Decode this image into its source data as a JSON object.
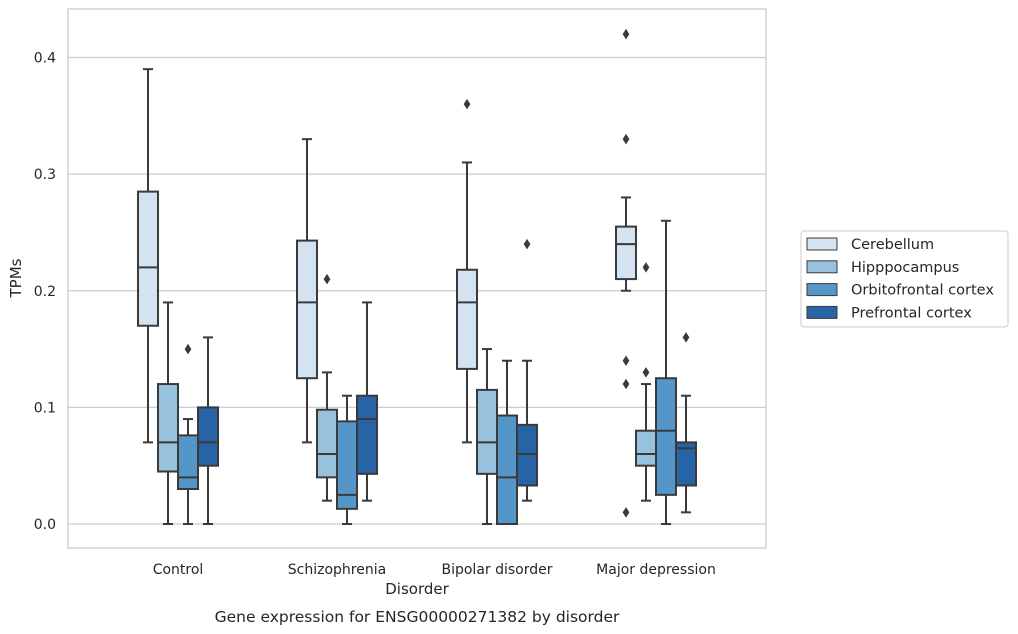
{
  "chart_data": {
    "type": "box",
    "title": "",
    "caption": "Gene expression for ENSG00000271382 by disorder",
    "xlabel": "Disorder",
    "ylabel": "TPMs",
    "ylim": [
      -0.02,
      0.441
    ],
    "yticks": [
      0.0,
      0.1,
      0.2,
      0.3,
      0.4
    ],
    "ytick_labels": [
      "0.0",
      "0.1",
      "0.2",
      "0.3",
      "0.4"
    ],
    "grid": "horizontal",
    "legend_position": "right",
    "categories": [
      "Control",
      "Schizophrenia",
      "Bipolar disorder",
      "Major depression"
    ],
    "series": [
      {
        "name": "Cerebellum",
        "color": "#d4e3f2",
        "boxes": [
          {
            "q1": 0.17,
            "median": 0.22,
            "q3": 0.285,
            "whisker_low": 0.07,
            "whisker_high": 0.39,
            "outliers": []
          },
          {
            "q1": 0.125,
            "median": 0.19,
            "q3": 0.243,
            "whisker_low": 0.07,
            "whisker_high": 0.33,
            "outliers": []
          },
          {
            "q1": 0.133,
            "median": 0.19,
            "q3": 0.218,
            "whisker_low": 0.07,
            "whisker_high": 0.31,
            "outliers": [
              0.36
            ]
          },
          {
            "q1": 0.21,
            "median": 0.24,
            "q3": 0.255,
            "whisker_low": 0.2,
            "whisker_high": 0.28,
            "outliers": [
              0.42,
              0.33,
              0.14,
              0.12,
              0.01
            ]
          }
        ]
      },
      {
        "name": "Hipppocampus",
        "color": "#97c1dc",
        "boxes": [
          {
            "q1": 0.045,
            "median": 0.07,
            "q3": 0.12,
            "whisker_low": 0.0,
            "whisker_high": 0.19,
            "outliers": []
          },
          {
            "q1": 0.04,
            "median": 0.06,
            "q3": 0.098,
            "whisker_low": 0.02,
            "whisker_high": 0.13,
            "outliers": [
              0.21
            ]
          },
          {
            "q1": 0.043,
            "median": 0.07,
            "q3": 0.115,
            "whisker_low": 0.0,
            "whisker_high": 0.15,
            "outliers": []
          },
          {
            "q1": 0.05,
            "median": 0.06,
            "q3": 0.08,
            "whisker_low": 0.02,
            "whisker_high": 0.12,
            "outliers": [
              0.22,
              0.13
            ]
          }
        ]
      },
      {
        "name": "Orbitofrontal cortex",
        "color": "#5496c8",
        "boxes": [
          {
            "q1": 0.03,
            "median": 0.04,
            "q3": 0.076,
            "whisker_low": 0.0,
            "whisker_high": 0.09,
            "outliers": [
              0.15
            ]
          },
          {
            "q1": 0.013,
            "median": 0.025,
            "q3": 0.088,
            "whisker_low": 0.0,
            "whisker_high": 0.11,
            "outliers": []
          },
          {
            "q1": 0.0,
            "median": 0.04,
            "q3": 0.093,
            "whisker_low": 0.0,
            "whisker_high": 0.14,
            "outliers": []
          },
          {
            "q1": 0.025,
            "median": 0.08,
            "q3": 0.125,
            "whisker_low": 0.0,
            "whisker_high": 0.26,
            "outliers": []
          }
        ]
      },
      {
        "name": "Prefrontal cortex",
        "color": "#2664a5",
        "boxes": [
          {
            "q1": 0.05,
            "median": 0.07,
            "q3": 0.1,
            "whisker_low": 0.0,
            "whisker_high": 0.16,
            "outliers": []
          },
          {
            "q1": 0.043,
            "median": 0.09,
            "q3": 0.11,
            "whisker_low": 0.02,
            "whisker_high": 0.19,
            "outliers": []
          },
          {
            "q1": 0.033,
            "median": 0.06,
            "q3": 0.085,
            "whisker_low": 0.02,
            "whisker_high": 0.14,
            "outliers": [
              0.24
            ]
          },
          {
            "q1": 0.033,
            "median": 0.065,
            "q3": 0.07,
            "whisker_low": 0.01,
            "whisker_high": 0.11,
            "outliers": [
              0.16
            ]
          }
        ]
      }
    ],
    "colors": {
      "edge": "#3a3a3a",
      "grid": "#cccccc",
      "frame": "#c6c6c6",
      "background": "#ffffff"
    }
  }
}
